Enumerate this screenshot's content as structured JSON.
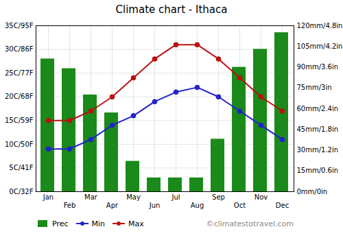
{
  "chart_data": {
    "type": "combo",
    "title": "Climate chart - Ithaca",
    "categories": [
      "Jan",
      "Feb",
      "Mar",
      "Apr",
      "May",
      "Jun",
      "Jul",
      "Aug",
      "Sep",
      "Oct",
      "Nov",
      "Dec"
    ],
    "series": [
      {
        "name": "Prec",
        "type": "bar",
        "axis": "y2",
        "color": "#1a8a1a",
        "values": [
          96,
          89,
          70,
          57,
          22,
          10,
          10,
          10,
          38,
          90,
          103,
          115
        ]
      },
      {
        "name": "Min",
        "type": "line",
        "color": "#2222cc",
        "marker": "circle",
        "values": [
          9,
          9,
          11,
          14,
          16,
          19,
          21,
          22,
          20,
          17,
          14,
          11
        ]
      },
      {
        "name": "Max",
        "type": "line",
        "color": "#bb1111",
        "marker": "circle",
        "values": [
          15,
          15,
          17,
          20,
          24,
          28,
          31,
          31,
          28,
          24,
          20,
          17
        ]
      }
    ],
    "ylim": [
      0,
      35
    ],
    "yticks": [
      {
        "value": 0,
        "label": "0C/32F"
      },
      {
        "value": 5,
        "label": "5C/41F"
      },
      {
        "value": 10,
        "label": "10C/50F"
      },
      {
        "value": 15,
        "label": "15C/59F"
      },
      {
        "value": 20,
        "label": "20C/68F"
      },
      {
        "value": 25,
        "label": "25C/77F"
      },
      {
        "value": 30,
        "label": "30C/86F"
      },
      {
        "value": 35,
        "label": "35C/95F"
      }
    ],
    "y2lim": [
      0,
      120
    ],
    "y2ticks": [
      {
        "value": 0,
        "label": "0mm/0in"
      },
      {
        "value": 15,
        "label": "15mm/0.6in"
      },
      {
        "value": 30,
        "label": "30mm/1.2in"
      },
      {
        "value": 45,
        "label": "45mm/1.8in"
      },
      {
        "value": 60,
        "label": "60mm/2.4in"
      },
      {
        "value": 75,
        "label": "75mm/3in"
      },
      {
        "value": 90,
        "label": "90mm/3.6in"
      },
      {
        "value": 105,
        "label": "105mm/4.2in"
      },
      {
        "value": 120,
        "label": "120mm/4.8in"
      }
    ],
    "grid": true,
    "legend": "bottom",
    "annotations": [
      "©climatestotravel.com"
    ]
  }
}
